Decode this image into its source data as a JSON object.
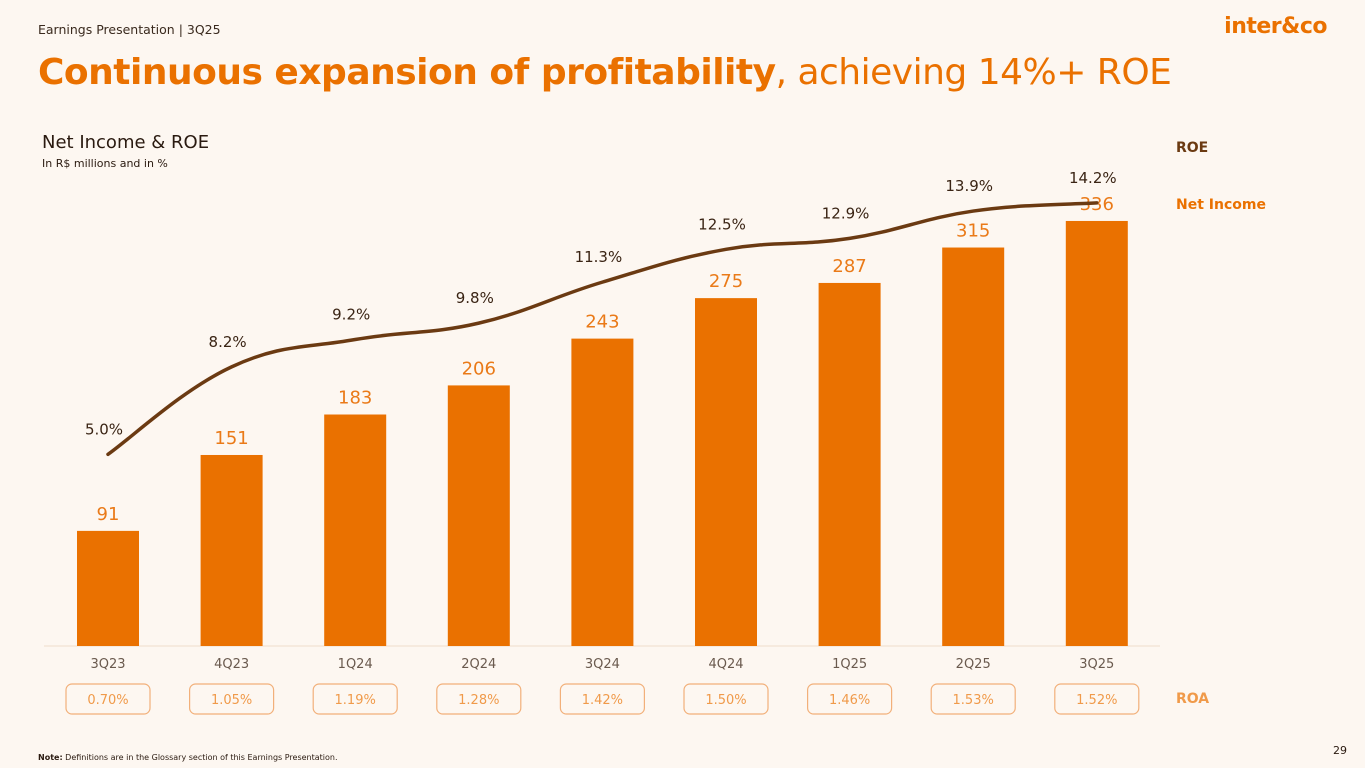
{
  "header": {
    "presentation_label": "Earnings Presentation | 3Q25",
    "logo_text": "inter&co"
  },
  "title": {
    "bold_part": "Continuous expansion of profitability",
    "regular_part": ", achieving 14%+ ROE"
  },
  "legend": {
    "roe": "ROE",
    "net_income": "Net Income",
    "roa": "ROA"
  },
  "chart_data": {
    "type": "bar",
    "title": "Net Income & ROE",
    "subtitle": "In R$ millions and in %",
    "categories": [
      "3Q23",
      "4Q23",
      "1Q24",
      "2Q24",
      "3Q24",
      "4Q24",
      "1Q25",
      "2Q25",
      "3Q25"
    ],
    "series": [
      {
        "name": "Net Income",
        "type": "bar",
        "values": [
          91,
          151,
          183,
          206,
          243,
          275,
          287,
          315,
          336
        ]
      },
      {
        "name": "ROE",
        "type": "line",
        "values": [
          5.0,
          8.2,
          9.2,
          9.8,
          11.3,
          12.5,
          12.9,
          13.9,
          14.2
        ]
      },
      {
        "name": "ROA",
        "type": "label",
        "values": [
          0.7,
          1.05,
          1.19,
          1.28,
          1.42,
          1.5,
          1.46,
          1.53,
          1.52
        ]
      }
    ],
    "bar_labels": [
      "91",
      "151",
      "183",
      "206",
      "243",
      "275",
      "287",
      "315",
      "336"
    ],
    "roe_labels": [
      "5.0%",
      "8.2%",
      "9.2%",
      "9.8%",
      "11.3%",
      "12.5%",
      "12.9%",
      "13.9%",
      "14.2%"
    ],
    "roa_labels": [
      "0.70%",
      "1.05%",
      "1.19%",
      "1.28%",
      "1.42%",
      "1.50%",
      "1.46%",
      "1.53%",
      "1.52%"
    ],
    "ylim": [
      0,
      350
    ],
    "roe_range": [
      0,
      15
    ]
  },
  "colors": {
    "accent": "#ea7100",
    "roe_line": "#6b3a12",
    "roa": "#f09a4a",
    "background": "#fdf7f1"
  },
  "footer": {
    "note_label": "Note:",
    "note_text": " Definitions are in the Glossary section of this Earnings Presentation.",
    "page_number": "29"
  }
}
